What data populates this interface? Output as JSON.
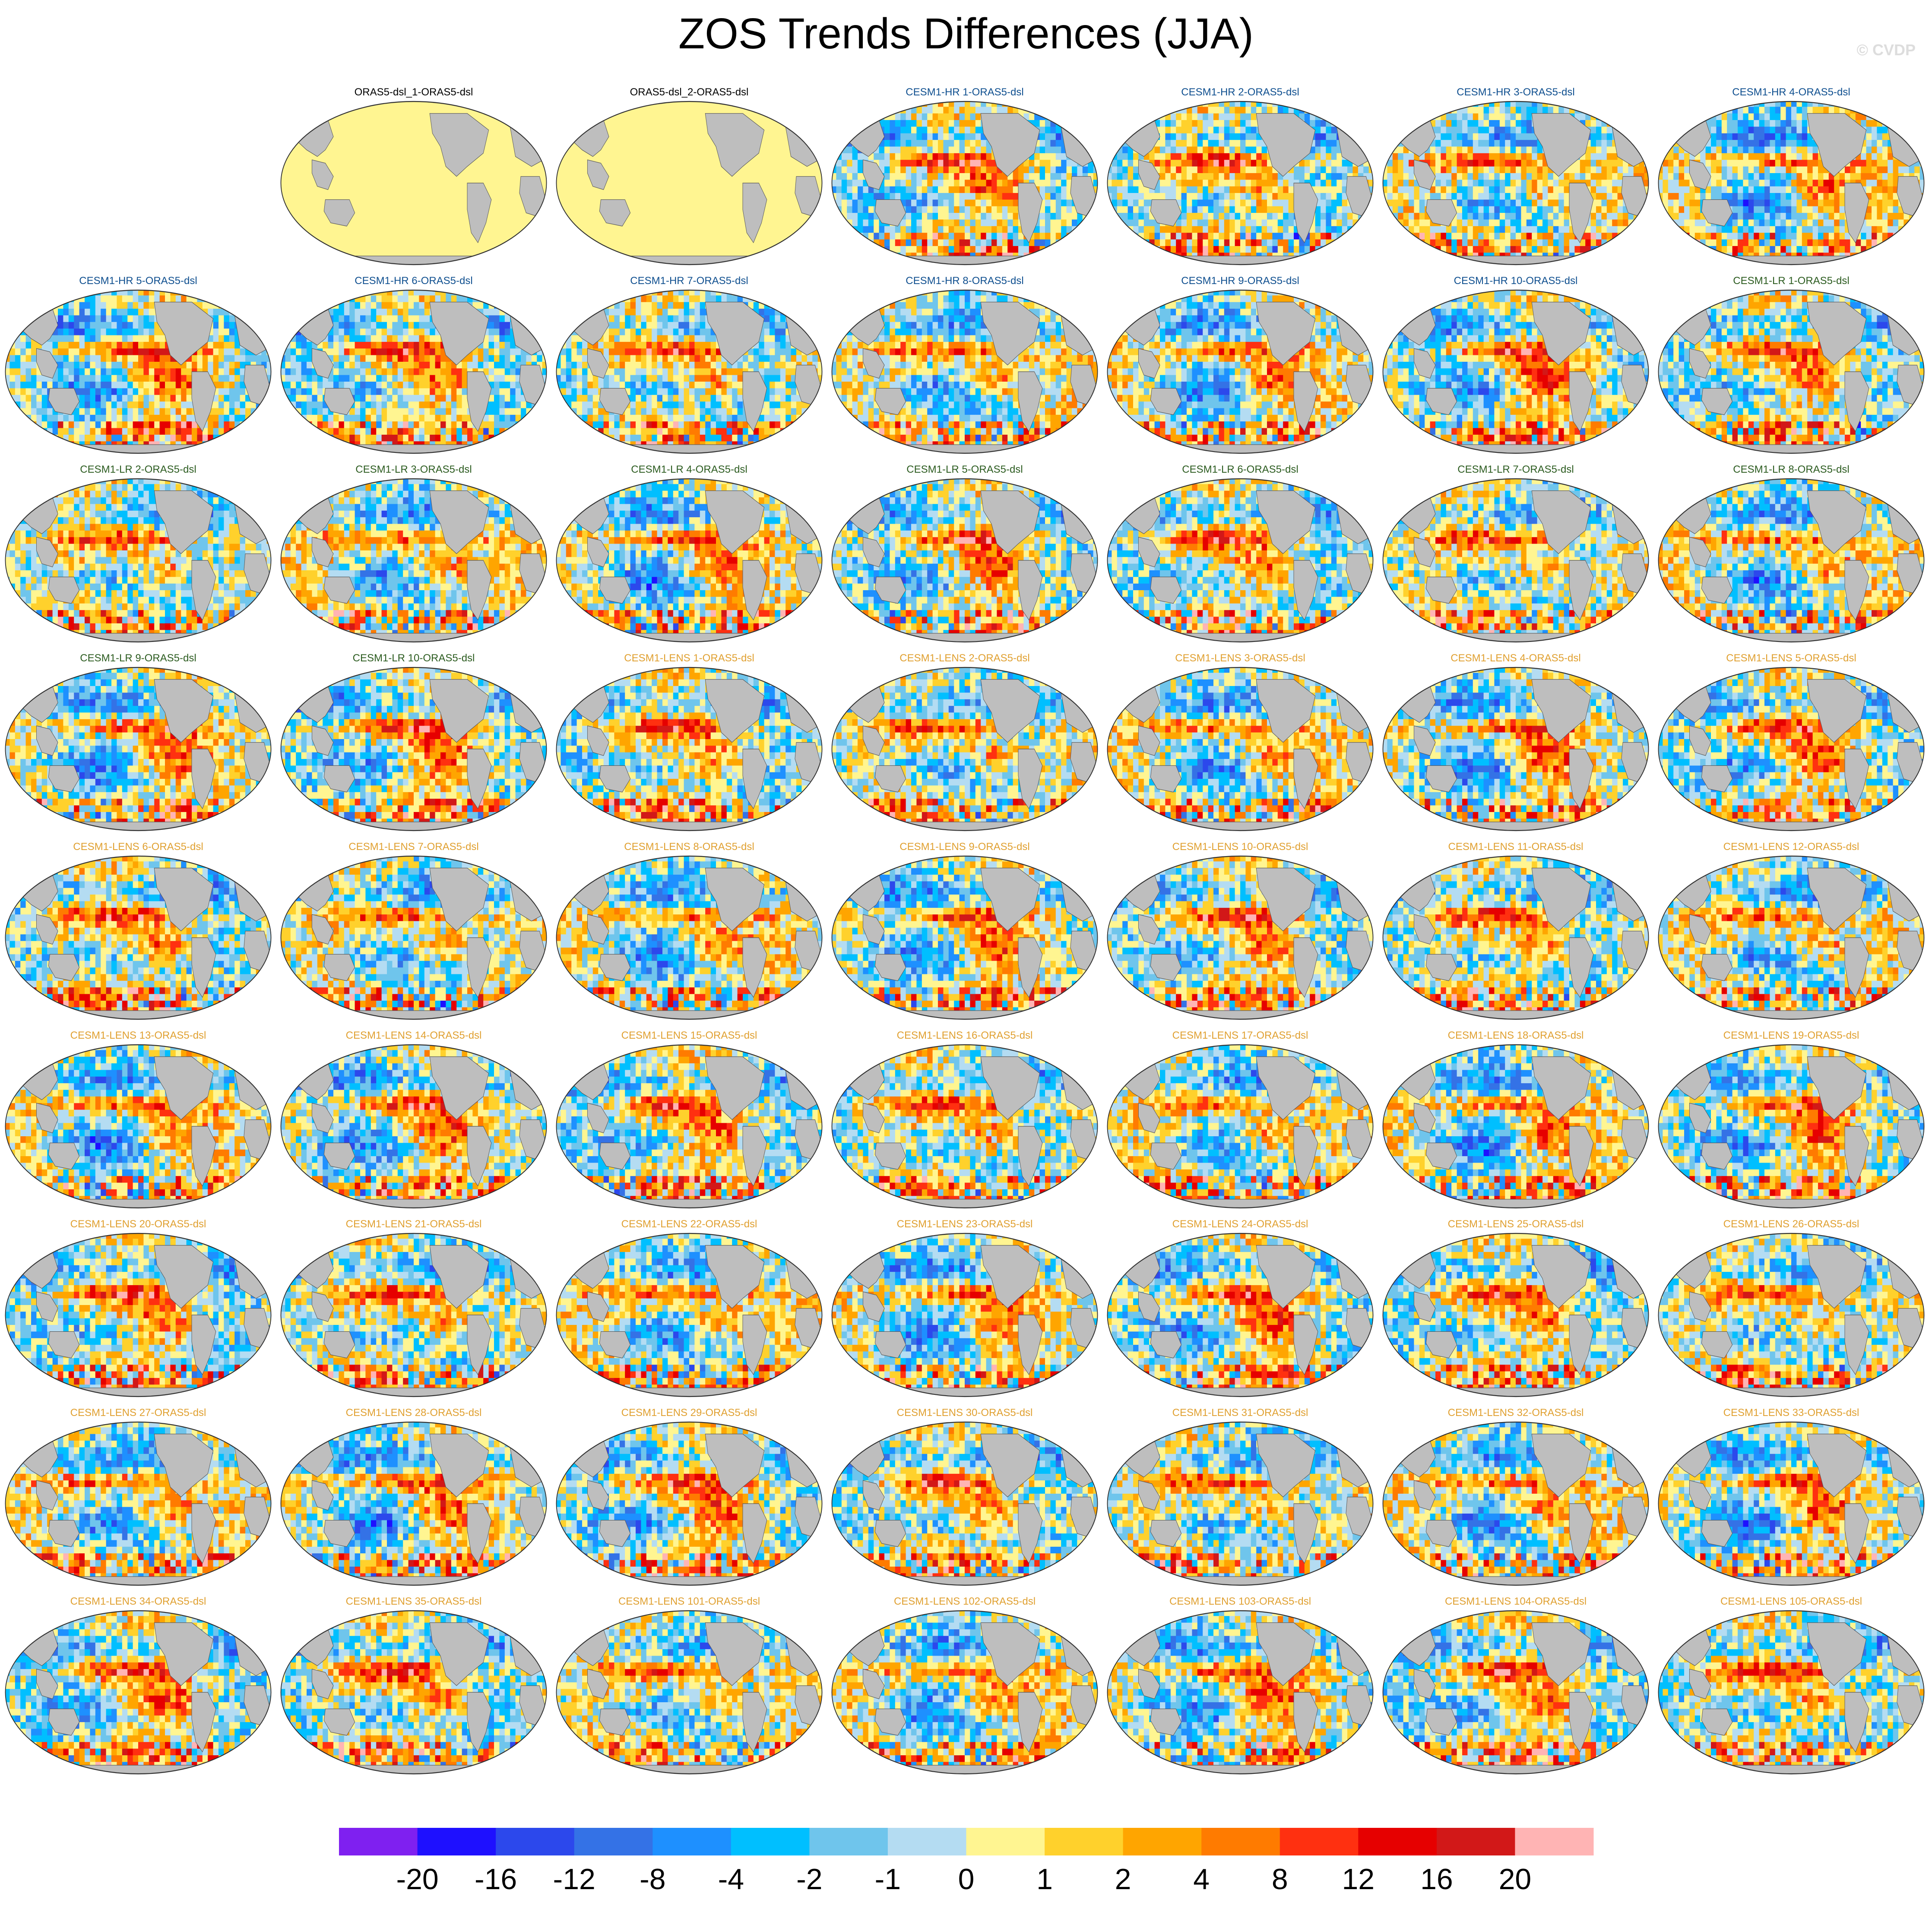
{
  "title": "ZOS Trends Differences (JJA)",
  "watermark": "© CVDP",
  "chart_data": {
    "type": "heatmap",
    "title": "ZOS Trends Differences (JJA)",
    "projection": "global map panels, Pacific-centered",
    "land_color": "#bebebe",
    "legend_placement": "bottom",
    "colorbar": {
      "colors": [
        "#7f20f0",
        "#1e10ff",
        "#2c48ec",
        "#3472e6",
        "#1e90ff",
        "#00bfff",
        "#6fc5ec",
        "#b4dcf2",
        "#fff591",
        "#ffd12c",
        "#ffa500",
        "#ff7b00",
        "#ff3010",
        "#e60000",
        "#d21818",
        "#ffb4b4"
      ],
      "labels": [
        "-20",
        "-16",
        "-12",
        "-8",
        "-4",
        "-2",
        "-1",
        "0",
        "1",
        "2",
        "4",
        "8",
        "12",
        "16",
        "20"
      ]
    },
    "panels": [
      {
        "label": "",
        "group": "empty"
      },
      {
        "label": "ORAS5-dsl_1-ORAS5-dsl",
        "group": "obs"
      },
      {
        "label": "ORAS5-dsl_2-ORAS5-dsl",
        "group": "obs"
      },
      {
        "label": "CESM1-HR 1-ORAS5-dsl",
        "group": "hr"
      },
      {
        "label": "CESM1-HR 2-ORAS5-dsl",
        "group": "hr"
      },
      {
        "label": "CESM1-HR 3-ORAS5-dsl",
        "group": "hr"
      },
      {
        "label": "CESM1-HR 4-ORAS5-dsl",
        "group": "hr"
      },
      {
        "label": "CESM1-HR 5-ORAS5-dsl",
        "group": "hr"
      },
      {
        "label": "CESM1-HR 6-ORAS5-dsl",
        "group": "hr"
      },
      {
        "label": "CESM1-HR 7-ORAS5-dsl",
        "group": "hr"
      },
      {
        "label": "CESM1-HR 8-ORAS5-dsl",
        "group": "hr"
      },
      {
        "label": "CESM1-HR 9-ORAS5-dsl",
        "group": "hr"
      },
      {
        "label": "CESM1-HR 10-ORAS5-dsl",
        "group": "hr"
      },
      {
        "label": "CESM1-LR 1-ORAS5-dsl",
        "group": "lr"
      },
      {
        "label": "CESM1-LR 2-ORAS5-dsl",
        "group": "lr"
      },
      {
        "label": "CESM1-LR 3-ORAS5-dsl",
        "group": "lr"
      },
      {
        "label": "CESM1-LR 4-ORAS5-dsl",
        "group": "lr"
      },
      {
        "label": "CESM1-LR 5-ORAS5-dsl",
        "group": "lr"
      },
      {
        "label": "CESM1-LR 6-ORAS5-dsl",
        "group": "lr"
      },
      {
        "label": "CESM1-LR 7-ORAS5-dsl",
        "group": "lr"
      },
      {
        "label": "CESM1-LR 8-ORAS5-dsl",
        "group": "lr"
      },
      {
        "label": "CESM1-LR 9-ORAS5-dsl",
        "group": "lr"
      },
      {
        "label": "CESM1-LR 10-ORAS5-dsl",
        "group": "lr"
      },
      {
        "label": "CESM1-LENS 1-ORAS5-dsl",
        "group": "lens"
      },
      {
        "label": "CESM1-LENS 2-ORAS5-dsl",
        "group": "lens"
      },
      {
        "label": "CESM1-LENS 3-ORAS5-dsl",
        "group": "lens"
      },
      {
        "label": "CESM1-LENS 4-ORAS5-dsl",
        "group": "lens"
      },
      {
        "label": "CESM1-LENS 5-ORAS5-dsl",
        "group": "lens"
      },
      {
        "label": "CESM1-LENS 6-ORAS5-dsl",
        "group": "lens"
      },
      {
        "label": "CESM1-LENS 7-ORAS5-dsl",
        "group": "lens"
      },
      {
        "label": "CESM1-LENS 8-ORAS5-dsl",
        "group": "lens"
      },
      {
        "label": "CESM1-LENS 9-ORAS5-dsl",
        "group": "lens"
      },
      {
        "label": "CESM1-LENS 10-ORAS5-dsl",
        "group": "lens"
      },
      {
        "label": "CESM1-LENS 11-ORAS5-dsl",
        "group": "lens"
      },
      {
        "label": "CESM1-LENS 12-ORAS5-dsl",
        "group": "lens"
      },
      {
        "label": "CESM1-LENS 13-ORAS5-dsl",
        "group": "lens"
      },
      {
        "label": "CESM1-LENS 14-ORAS5-dsl",
        "group": "lens"
      },
      {
        "label": "CESM1-LENS 15-ORAS5-dsl",
        "group": "lens"
      },
      {
        "label": "CESM1-LENS 16-ORAS5-dsl",
        "group": "lens"
      },
      {
        "label": "CESM1-LENS 17-ORAS5-dsl",
        "group": "lens"
      },
      {
        "label": "CESM1-LENS 18-ORAS5-dsl",
        "group": "lens"
      },
      {
        "label": "CESM1-LENS 19-ORAS5-dsl",
        "group": "lens"
      },
      {
        "label": "CESM1-LENS 20-ORAS5-dsl",
        "group": "lens"
      },
      {
        "label": "CESM1-LENS 21-ORAS5-dsl",
        "group": "lens"
      },
      {
        "label": "CESM1-LENS 22-ORAS5-dsl",
        "group": "lens"
      },
      {
        "label": "CESM1-LENS 23-ORAS5-dsl",
        "group": "lens"
      },
      {
        "label": "CESM1-LENS 24-ORAS5-dsl",
        "group": "lens"
      },
      {
        "label": "CESM1-LENS 25-ORAS5-dsl",
        "group": "lens"
      },
      {
        "label": "CESM1-LENS 26-ORAS5-dsl",
        "group": "lens"
      },
      {
        "label": "CESM1-LENS 27-ORAS5-dsl",
        "group": "lens"
      },
      {
        "label": "CESM1-LENS 28-ORAS5-dsl",
        "group": "lens"
      },
      {
        "label": "CESM1-LENS 29-ORAS5-dsl",
        "group": "lens"
      },
      {
        "label": "CESM1-LENS 30-ORAS5-dsl",
        "group": "lens"
      },
      {
        "label": "CESM1-LENS 31-ORAS5-dsl",
        "group": "lens"
      },
      {
        "label": "CESM1-LENS 32-ORAS5-dsl",
        "group": "lens"
      },
      {
        "label": "CESM1-LENS 33-ORAS5-dsl",
        "group": "lens"
      },
      {
        "label": "CESM1-LENS 34-ORAS5-dsl",
        "group": "lens"
      },
      {
        "label": "CESM1-LENS 35-ORAS5-dsl",
        "group": "lens"
      },
      {
        "label": "CESM1-LENS 101-ORAS5-dsl",
        "group": "lens"
      },
      {
        "label": "CESM1-LENS 102-ORAS5-dsl",
        "group": "lens"
      },
      {
        "label": "CESM1-LENS 103-ORAS5-dsl",
        "group": "lens"
      },
      {
        "label": "CESM1-LENS 104-ORAS5-dsl",
        "group": "lens"
      },
      {
        "label": "CESM1-LENS 105-ORAS5-dsl",
        "group": "lens"
      }
    ],
    "group_label_colors": {
      "obs": "#000000",
      "hr": "#0f4f8f",
      "lr": "#2b5b1f",
      "lens": "#e0a030"
    }
  }
}
